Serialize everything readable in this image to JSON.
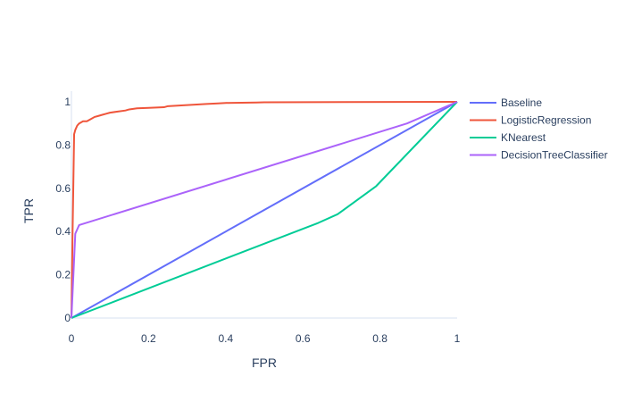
{
  "chart_data": {
    "type": "line",
    "xlabel": "FPR",
    "ylabel": "TPR",
    "xlim": [
      0,
      1
    ],
    "ylim": [
      0,
      1
    ],
    "x_ticks": [
      0,
      0.2,
      0.4,
      0.6,
      0.8,
      1
    ],
    "x_tick_labels": [
      "0",
      "0.2",
      "0.4",
      "0.6",
      "0.8",
      "1"
    ],
    "y_ticks": [
      0,
      0.2,
      0.4,
      0.6,
      0.8,
      1
    ],
    "y_tick_labels": [
      "0",
      "0.2",
      "0.4",
      "0.6",
      "0.8",
      "1"
    ],
    "grid": false,
    "legend_position": "right",
    "series": [
      {
        "name": "Baseline",
        "color": "#636efa",
        "x": [
          0,
          1
        ],
        "y": [
          0,
          1
        ]
      },
      {
        "name": "LogisticRegression",
        "color": "#ef553b",
        "x": [
          0,
          0.003,
          0.007,
          0.01,
          0.015,
          0.02,
          0.03,
          0.04,
          0.05,
          0.06,
          0.07,
          0.08,
          0.09,
          0.1,
          0.12,
          0.14,
          0.15,
          0.17,
          0.2,
          0.24,
          0.25,
          0.27,
          0.3,
          0.35,
          0.38,
          0.4,
          0.48,
          0.5,
          1
        ],
        "y": [
          0,
          0.4,
          0.85,
          0.87,
          0.89,
          0.9,
          0.91,
          0.91,
          0.92,
          0.93,
          0.935,
          0.94,
          0.945,
          0.95,
          0.955,
          0.96,
          0.965,
          0.97,
          0.972,
          0.975,
          0.98,
          0.982,
          0.985,
          0.99,
          0.993,
          0.995,
          0.997,
          0.998,
          1.0
        ]
      },
      {
        "name": "KNearest",
        "color": "#00cc96",
        "x": [
          0,
          0.64,
          0.69,
          0.79,
          1
        ],
        "y": [
          0,
          0.44,
          0.48,
          0.61,
          1
        ]
      },
      {
        "name": "DecisionTreeClassifier",
        "color": "#ab63fa",
        "x": [
          0,
          0.01,
          0.02,
          0.87,
          1
        ],
        "y": [
          0,
          0.39,
          0.43,
          0.9,
          1
        ]
      }
    ]
  }
}
